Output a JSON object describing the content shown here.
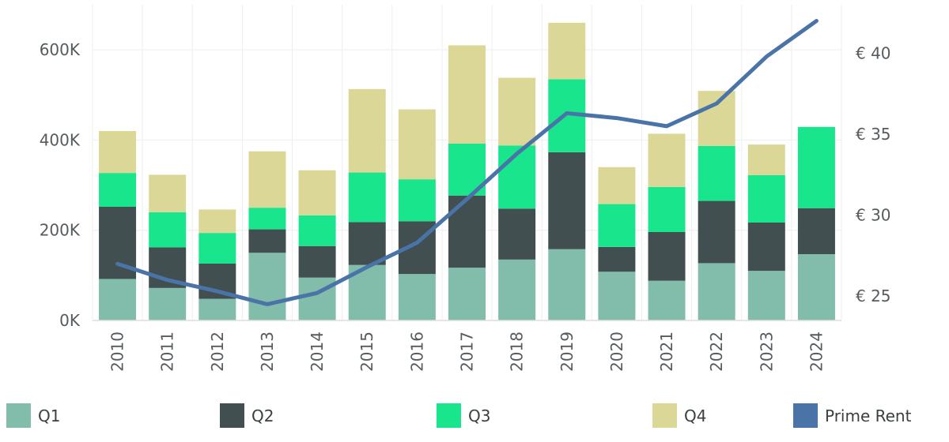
{
  "chart_data": {
    "type": "bar",
    "stacked": true,
    "categories": [
      "2010",
      "2011",
      "2012",
      "2013",
      "2014",
      "2015",
      "2016",
      "2017",
      "2018",
      "2019",
      "2020",
      "2021",
      "2022",
      "2023",
      "2024"
    ],
    "series": [
      {
        "name": "Q1",
        "color": "#82bcaa",
        "values": [
          92000,
          72000,
          48000,
          150000,
          95000,
          123000,
          103000,
          117000,
          135000,
          158000,
          108000,
          88000,
          127000,
          110000,
          147000
        ]
      },
      {
        "name": "Q2",
        "color": "#414f51",
        "values": [
          160000,
          90000,
          78000,
          52000,
          70000,
          95000,
          117000,
          160000,
          113000,
          215000,
          55000,
          108000,
          138000,
          107000,
          102000
        ]
      },
      {
        "name": "Q3",
        "color": "#19e58c",
        "values": [
          75000,
          78000,
          68000,
          48000,
          68000,
          110000,
          93000,
          115000,
          140000,
          162000,
          95000,
          100000,
          122000,
          105000,
          180000
        ]
      },
      {
        "name": "Q4",
        "color": "#dbd897",
        "values": [
          93000,
          83000,
          52000,
          125000,
          100000,
          185000,
          155000,
          218000,
          150000,
          125000,
          82000,
          118000,
          122000,
          68000,
          0
        ]
      }
    ],
    "line": {
      "name": "Prime Rent",
      "color": "#4a73a8",
      "values": [
        27.0,
        26.0,
        25.3,
        24.5,
        25.2,
        26.8,
        28.3,
        31.0,
        33.8,
        36.3,
        36.0,
        35.5,
        36.9,
        39.8,
        42.0
      ]
    },
    "y_left": {
      "min": 0,
      "max": 700000,
      "ticks": [
        0,
        200000,
        400000,
        600000
      ],
      "tick_labels": [
        "0K",
        "200K",
        "400K",
        "600K"
      ]
    },
    "y_right": {
      "min": 23.5,
      "max": 43.0,
      "ticks": [
        25,
        30,
        35,
        40
      ],
      "tick_labels": [
        "€ 25",
        "€ 30",
        "€ 35",
        "€ 40"
      ]
    },
    "legend_position": "bottom",
    "grid": true
  }
}
